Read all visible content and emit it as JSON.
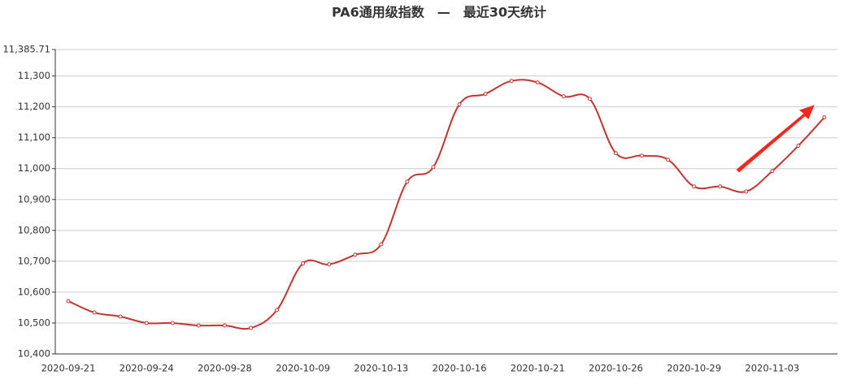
{
  "chart_data": {
    "type": "line",
    "title": "PA6通用级指数　—　最近30天统计",
    "categories": [
      "2020-09-21",
      null,
      null,
      "2020-09-24",
      null,
      null,
      "2020-09-28",
      null,
      null,
      "2020-10-09",
      null,
      null,
      "2020-10-13",
      null,
      null,
      "2020-10-16",
      null,
      null,
      "2020-10-21",
      null,
      null,
      "2020-10-26",
      null,
      null,
      "2020-10-29",
      null,
      null,
      "2020-11-03",
      null,
      null
    ],
    "values": [
      10571,
      10534,
      10521,
      10500,
      10500,
      10492,
      10492,
      10484,
      10542,
      10693,
      10690,
      10721,
      10755,
      10958,
      11005,
      11208,
      11242,
      11284,
      11279,
      11234,
      11226,
      11050,
      11042,
      11029,
      10942,
      10942,
      10926,
      10992,
      11074,
      11166
    ],
    "color": "#c23531",
    "ylim": [
      10400,
      11385.71
    ],
    "yticks": [
      {
        "value": 10400,
        "label": "10,400"
      },
      {
        "value": 10500,
        "label": "10,500"
      },
      {
        "value": 10600,
        "label": "10,600"
      },
      {
        "value": 10700,
        "label": "10,700"
      },
      {
        "value": 10800,
        "label": "10,800"
      },
      {
        "value": 10900,
        "label": "10,900"
      },
      {
        "value": 11000,
        "label": "11,000"
      },
      {
        "value": 11100,
        "label": "11,100"
      },
      {
        "value": 11200,
        "label": "11,200"
      },
      {
        "value": 11300,
        "label": "11,300"
      },
      {
        "value": 11385.71,
        "label": "11,385.71"
      }
    ],
    "grid": true
  }
}
